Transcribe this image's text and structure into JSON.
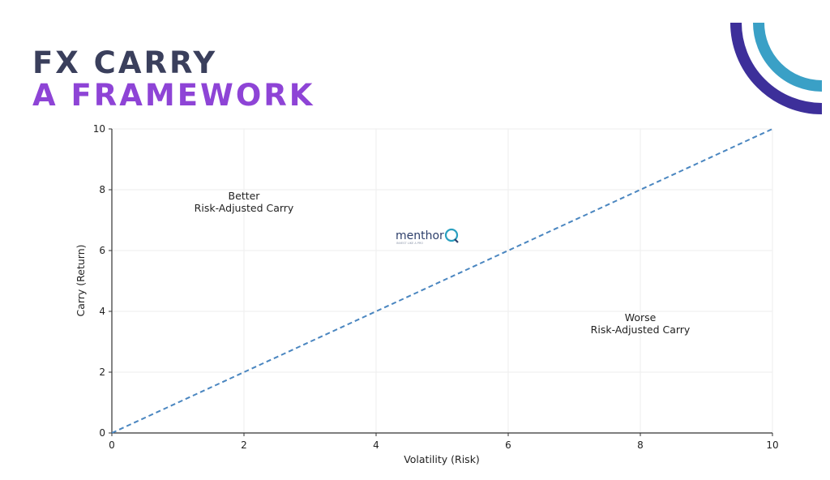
{
  "header": {
    "title_line1": "FX CARRY",
    "title_line2": "A FRAMEWORK"
  },
  "colors": {
    "title_line1": "#3a3f5c",
    "title_line2": "#8e44d6",
    "arc_outer": "#3d2f9a",
    "arc_inner": "#3aa0c6",
    "series_line": "#4a86c0",
    "grid": "#eeeeee",
    "axis": "#333333"
  },
  "logo": {
    "name": "menthor",
    "letter": "Q",
    "tagline": "INVEST LIKE A PRO"
  },
  "chart_data": {
    "type": "line",
    "title": "",
    "xlabel": "Volatility (Risk)",
    "ylabel": "Carry (Return)",
    "xlim": [
      0,
      10
    ],
    "ylim": [
      0,
      10
    ],
    "xticks": [
      0,
      2,
      4,
      6,
      8,
      10
    ],
    "yticks": [
      0,
      2,
      4,
      6,
      8,
      10
    ],
    "grid": true,
    "series": [
      {
        "x": [
          0,
          10
        ],
        "y": [
          0,
          10
        ],
        "style": "dashed"
      }
    ],
    "annotations": [
      {
        "lines": [
          "Better",
          "Risk-Adjusted Carry"
        ],
        "x": 2.0,
        "y": 7.5
      },
      {
        "lines": [
          "Worse",
          "Risk-Adjusted Carry"
        ],
        "x": 8.0,
        "y": 3.5
      }
    ]
  }
}
